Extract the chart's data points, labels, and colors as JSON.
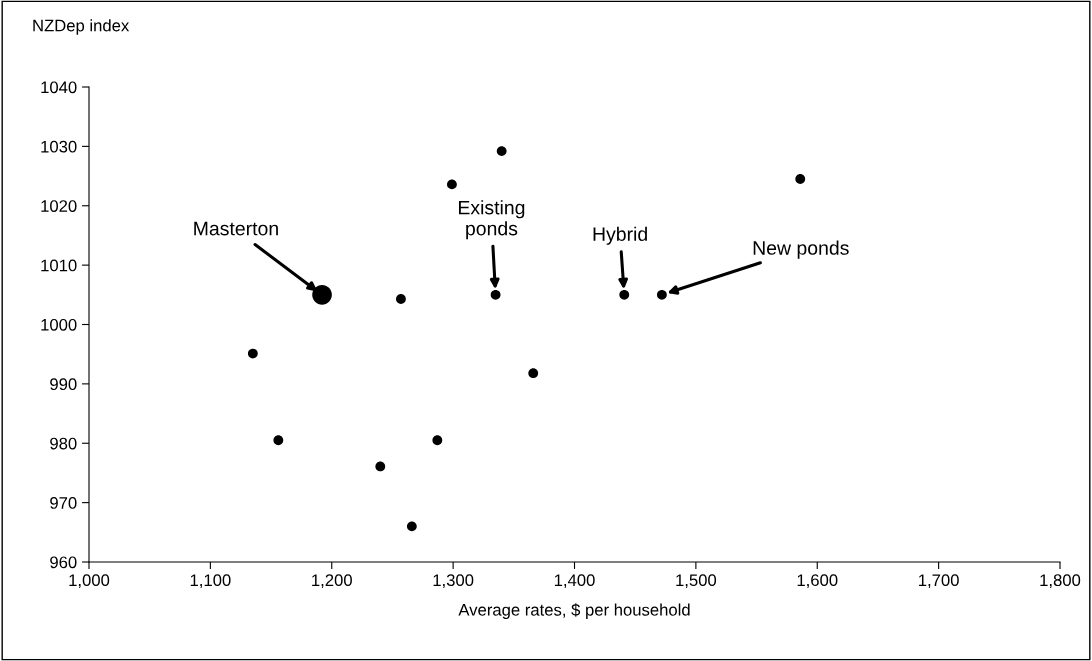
{
  "chart_data": {
    "type": "bubble",
    "xlabel": "Average rates, $ per household",
    "ylabel": "NZDep index",
    "x": [
      1135,
      1156,
      1192,
      1240,
      1257,
      1266,
      1287,
      1299,
      1335,
      1340,
      1366,
      1441,
      1472,
      1586
    ],
    "values": [
      995.1,
      980.5,
      1005,
      976.1,
      1004.3,
      966.0,
      980.5,
      1023.6,
      1005,
      1029.2,
      991.8,
      1005,
      1005,
      1024.5
    ],
    "sizes": [
      0.25,
      0.25,
      1,
      0.25,
      0.25,
      0.25,
      0.25,
      0.25,
      0.25,
      0.25,
      0.25,
      0.25,
      0.25,
      0.25
    ],
    "color": "#000000",
    "xlim": [
      1000,
      1800
    ],
    "ylim": [
      960,
      1040
    ],
    "xticks": [
      {
        "value": 1000,
        "label": "1,000"
      },
      {
        "value": 1100,
        "label": "1,100"
      },
      {
        "value": 1200,
        "label": "1,200"
      },
      {
        "value": 1300,
        "label": "1,300"
      },
      {
        "value": 1400,
        "label": "1,400"
      },
      {
        "value": 1500,
        "label": "1,500"
      },
      {
        "value": 1600,
        "label": "1,600"
      },
      {
        "value": 1700,
        "label": "1,700"
      },
      {
        "value": 1800,
        "label": "1,800"
      }
    ],
    "yticks": [
      960,
      970,
      980,
      990,
      1000,
      1010,
      1020,
      1030,
      1040
    ],
    "annotations": [
      {
        "text": "Masterton",
        "x": 1192,
        "y": 1005
      },
      {
        "text": "Existing\nponds",
        "x": 1335,
        "y": 1005
      },
      {
        "text": "Hybrid",
        "x": 1441,
        "y": 1005
      },
      {
        "text": "New ponds",
        "x": 1472,
        "y": 1005
      }
    ],
    "grid": false,
    "legend": false
  }
}
